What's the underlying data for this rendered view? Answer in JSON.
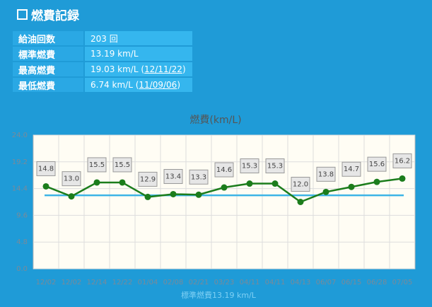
{
  "header": {
    "title": "燃費記録"
  },
  "table": {
    "rows": [
      {
        "label": "給油回数",
        "value": "203 回"
      },
      {
        "label": "標準燃費",
        "value": "13.19 km/L"
      },
      {
        "label": "最高燃費",
        "value": "19.03 km/L (",
        "link": "12/11/22",
        "tail": ")"
      },
      {
        "label": "最低燃費",
        "value": "6.74 km/L (",
        "link": "11/09/06",
        "tail": ")"
      }
    ]
  },
  "chart_data": {
    "type": "line",
    "title": "燃費(km/L)",
    "categories": [
      "12/02",
      "12/02",
      "12/14",
      "12/22",
      "01/04",
      "02/08",
      "02/21",
      "03/23",
      "04/11",
      "04/11",
      "04/13",
      "06/07",
      "06/15",
      "06/28",
      "07/05"
    ],
    "series": [
      {
        "color": "#1c7d1c",
        "values": [
          14.8,
          13.0,
          15.5,
          15.5,
          12.9,
          13.4,
          13.3,
          14.6,
          15.3,
          15.3,
          12.0,
          13.8,
          14.7,
          15.6,
          16.2
        ],
        "value_labels": [
          "14.8",
          "13.0",
          "15.5",
          "15.5",
          "12.9",
          "13.4",
          "13.3",
          "14.6",
          "15.3",
          "15.3",
          "12.0",
          "13.8",
          "14.7",
          "15.6",
          "16.2"
        ]
      }
    ],
    "reference": {
      "value": 13.19,
      "label": "標準燃費13.19 km/L",
      "color": "#3cb4e6"
    },
    "ylim": [
      0,
      24
    ],
    "yticks": [
      {
        "value": 0,
        "label": "0.0"
      },
      {
        "value": 4.8,
        "label": "4.8"
      },
      {
        "value": 9.6,
        "label": "9.6"
      },
      {
        "value": 14.4,
        "label": "14.4"
      },
      {
        "value": 19.2,
        "label": "19.2"
      },
      {
        "value": 24,
        "label": "24.0"
      }
    ],
    "grid": true
  }
}
